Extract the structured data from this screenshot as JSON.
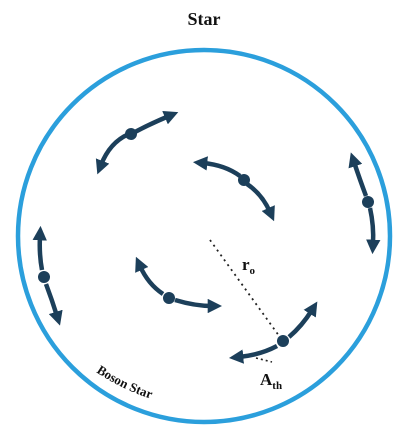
{
  "title": "Star",
  "labels": {
    "boson_star": "Boson Star",
    "radius_main": "r",
    "radius_sub": "o",
    "amplitude_main": "A",
    "amplitude_sub": "th"
  },
  "colors": {
    "circle": "#2b9fdc",
    "particle": "#1c3f5a",
    "text": "#111111",
    "dotted": "#222222"
  }
}
